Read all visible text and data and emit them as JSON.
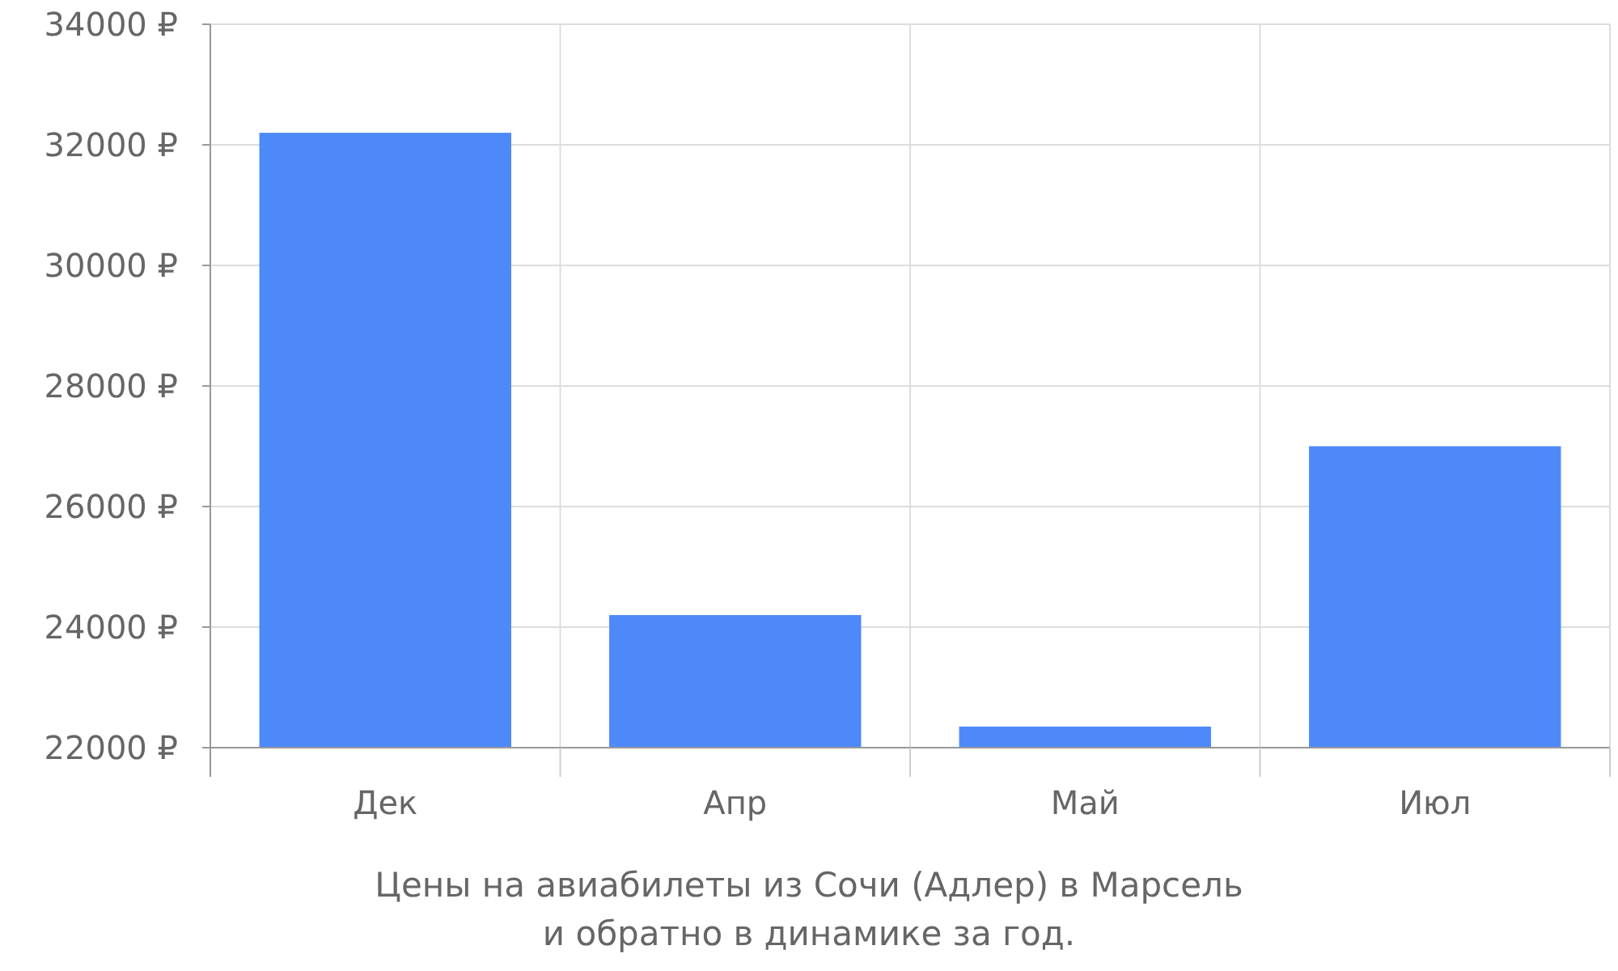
{
  "chart_data": {
    "type": "bar",
    "title": "Цены на авиабилеты из Сочи (Адлер) в Марсель и обратно в динамике за год.",
    "categories": [
      "Дек",
      "Апр",
      "Май",
      "Июл"
    ],
    "values": [
      32200,
      24200,
      22350,
      27000
    ],
    "color": "#4d89f9",
    "ylim": [
      22000,
      34000
    ],
    "yticks": [
      {
        "value": 22000,
        "label": "22000 ₽"
      },
      {
        "value": 24000,
        "label": "24000 ₽"
      },
      {
        "value": 26000,
        "label": "26000 ₽"
      },
      {
        "value": 28000,
        "label": "28000 ₽"
      },
      {
        "value": 30000,
        "label": "30000 ₽"
      },
      {
        "value": 32000,
        "label": "32000 ₽"
      },
      {
        "value": 34000,
        "label": "34000 ₽"
      }
    ],
    "grid": true
  }
}
